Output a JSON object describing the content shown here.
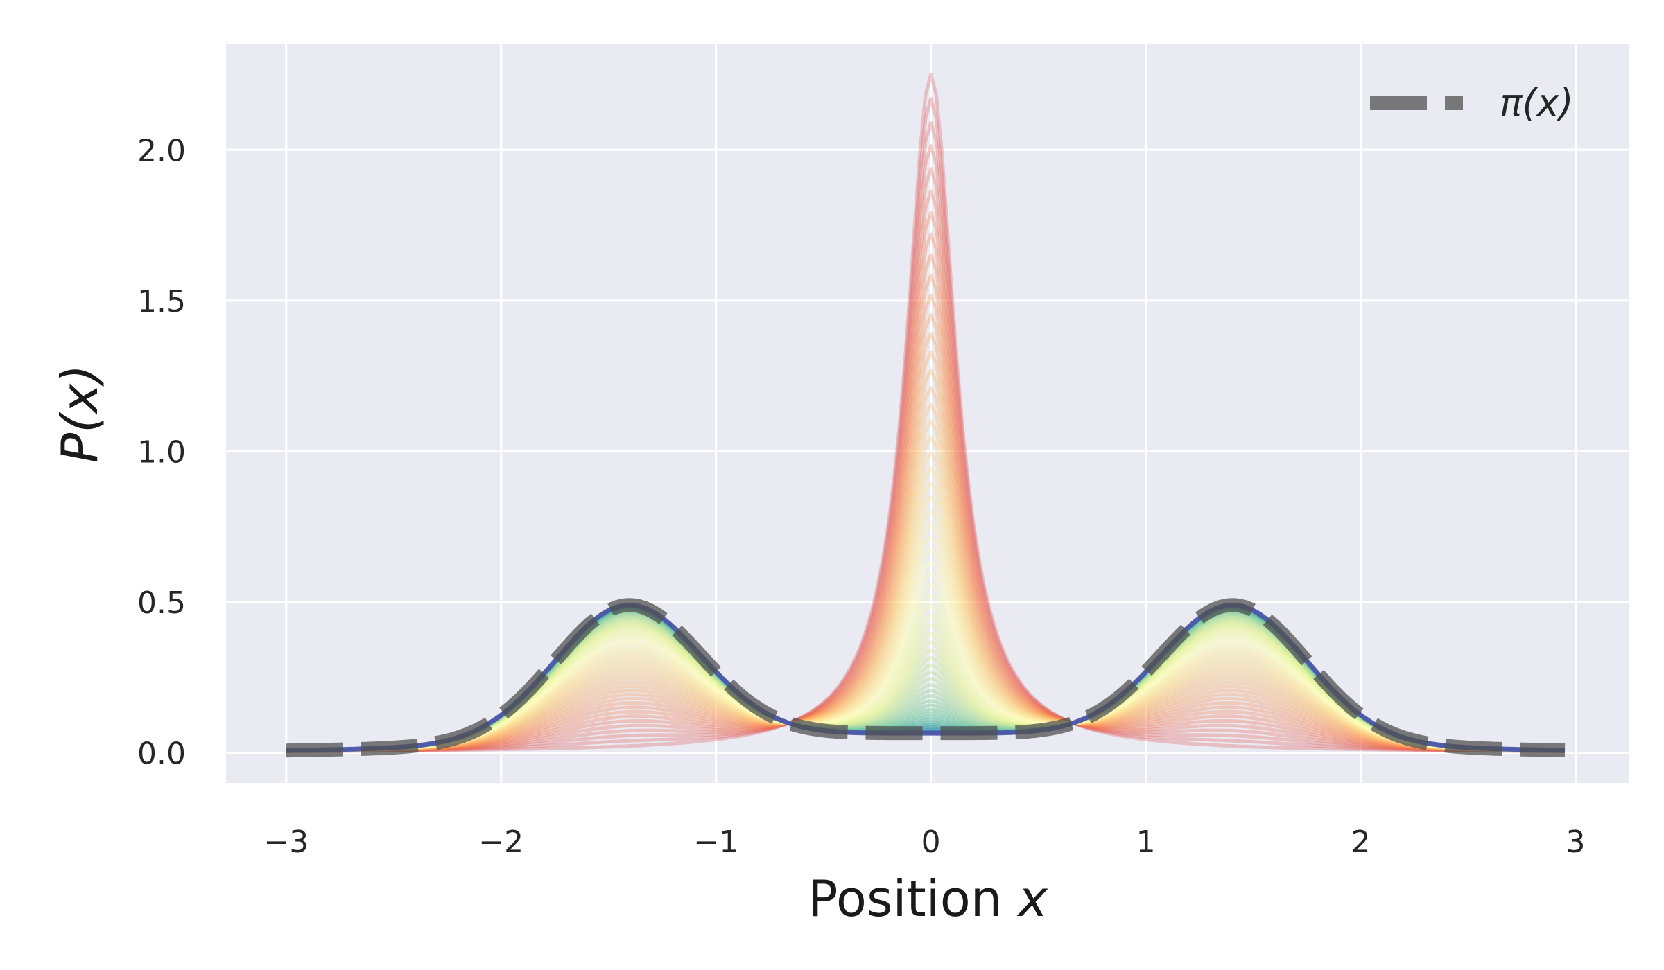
{
  "chart_data": {
    "type": "line",
    "title": "",
    "xlabel": "Position x",
    "ylabel": "P(x)",
    "xlim": [
      -3.28,
      3.25
    ],
    "ylim": [
      -0.1,
      2.35
    ],
    "xticks": [
      -3,
      -2,
      -1,
      0,
      1,
      2,
      3
    ],
    "xtick_labels": [
      "−3",
      "−2",
      "−1",
      "0",
      "1",
      "2",
      "3"
    ],
    "yticks": [
      0.0,
      0.5,
      1.0,
      1.5,
      2.0
    ],
    "ytick_labels": [
      "0.0",
      "0.5",
      "1.0",
      "1.5",
      "2.0"
    ],
    "grid": true,
    "background": "#eaeaf2",
    "x_range": [
      -3.0,
      2.95
    ],
    "target_distribution": {
      "name": "π(x)",
      "style": "dashed",
      "color": "#505050",
      "description_points": [
        {
          "x": -3.0,
          "y": 0.0
        },
        {
          "x": -2.0,
          "y": 0.05
        },
        {
          "x": -1.41,
          "y": 0.49
        },
        {
          "x": -1.0,
          "y": 0.31
        },
        {
          "x": 0.0,
          "y": 0.08
        },
        {
          "x": 1.0,
          "y": 0.31
        },
        {
          "x": 1.41,
          "y": 0.49
        },
        {
          "x": 2.0,
          "y": 0.05
        },
        {
          "x": 2.95,
          "y": 0.0
        }
      ]
    },
    "evolution": {
      "initial_peak": 2.25,
      "initial_peak_x": 0.0,
      "num_curves": 60,
      "colormap": "Spectral",
      "final_color": "#4e5aa8"
    },
    "legend": {
      "position": "top-right",
      "entries": [
        "π(x)"
      ]
    }
  },
  "colors": {
    "plot_bg": "#eaeaf2",
    "grid": "#ffffff",
    "text": "#262626",
    "dash": "#505050"
  }
}
